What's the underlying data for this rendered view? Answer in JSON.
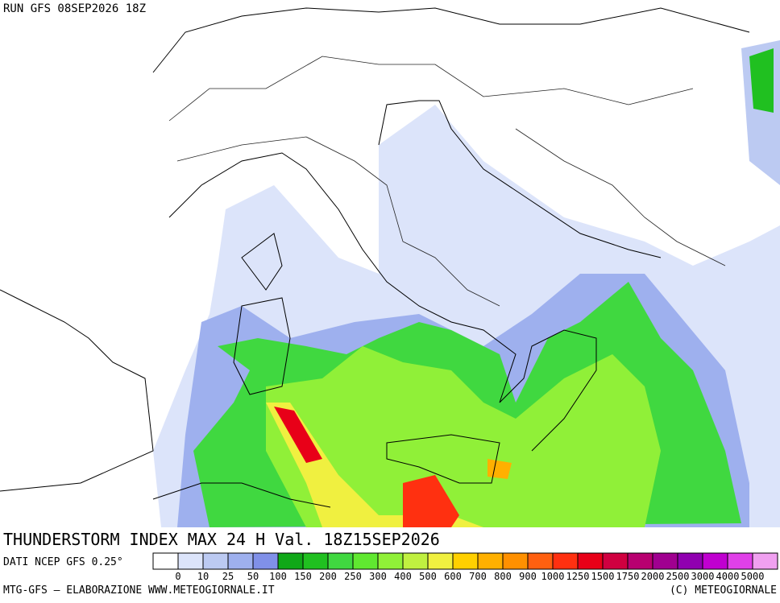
{
  "header": {
    "run": "RUN GFS 08SEP2026 18Z"
  },
  "title": "THUNDERSTORM INDEX MAX 24 H Val. 18Z15SEP2026",
  "source": "DATI NCEP GFS 0.25°",
  "legend": {
    "labels": [
      "0",
      "10",
      "25",
      "50",
      "100",
      "150",
      "200",
      "250",
      "300",
      "400",
      "500",
      "600",
      "700",
      "800",
      "900",
      "1000",
      "1250",
      "1500",
      "1750",
      "2000",
      "2500",
      "3000",
      "4000",
      "5000"
    ],
    "colors": [
      "#ffffff",
      "#dce4fa",
      "#bccaf2",
      "#9eb0ee",
      "#8090e8",
      "#10a818",
      "#20c020",
      "#40d840",
      "#60e830",
      "#90f038",
      "#c0f040",
      "#f0f040",
      "#ffd000",
      "#ffb000",
      "#ff9000",
      "#ff6010",
      "#ff3010",
      "#e80018",
      "#d00040",
      "#b80070",
      "#a00090",
      "#9000b0",
      "#c000d0",
      "#e040e8",
      "#f0a0f0"
    ]
  },
  "footer": {
    "left": "MTG-GFS — ELABORAZIONE WWW.METEOGIORNALE.IT",
    "right": "(C) METEOGIORNALE"
  }
}
